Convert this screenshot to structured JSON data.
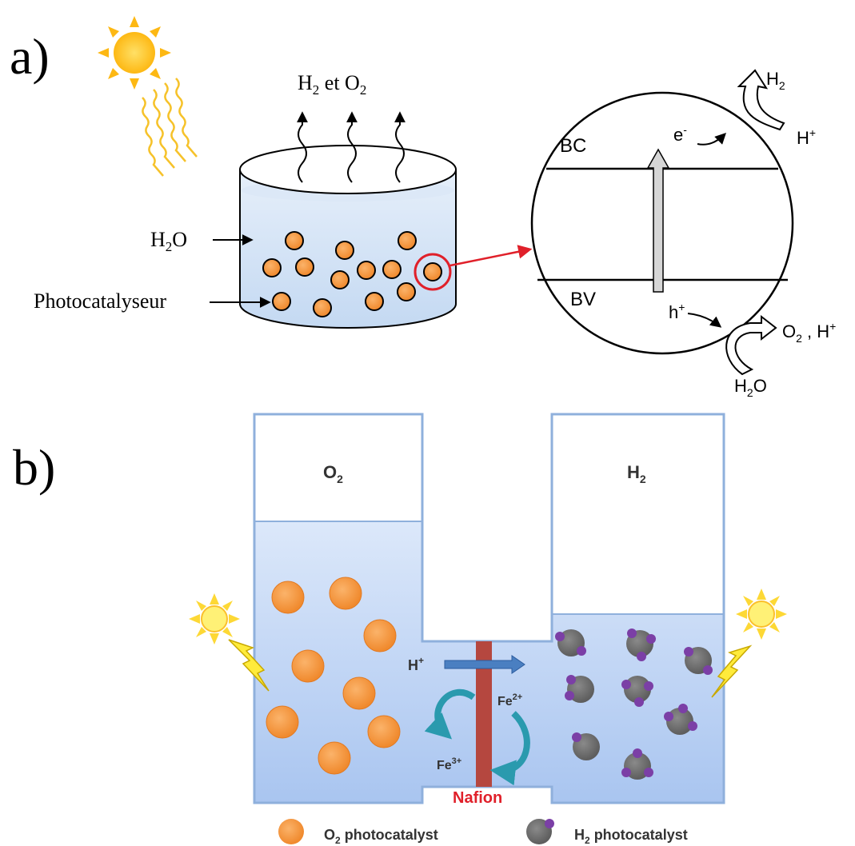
{
  "panel_a": {
    "label": "a)",
    "gas_main": "H",
    "gas_sub1": "2",
    "gas_mid": " et O",
    "gas_sub2": "2",
    "water_main": "H",
    "water_sub": "2",
    "water_end": "O",
    "catalyst_label": "Photocatalyseur",
    "band_top": "BC",
    "band_bottom": "BV",
    "electron": "e",
    "electron_sup": "-",
    "h2_main": "H",
    "h2_sub": "2",
    "hplus_main": "H",
    "hplus_sup": "+",
    "hole": "h",
    "hole_sup": "+",
    "o2_main": "O",
    "o2_sub": "2",
    "o2_tail": " , H",
    "o2_sup": "+",
    "h2o_main": "H",
    "h2o_sub": "2",
    "h2o_end": "O"
  },
  "panel_b": {
    "label": "b)",
    "left_main": "O",
    "left_sub": "2",
    "right_main": "H",
    "right_sub": "2",
    "proton_main": "H",
    "proton_sup": "+",
    "fe2_main": "Fe",
    "fe2_sup": "2+",
    "fe3_main": "Fe",
    "fe3_sup": "3+",
    "membrane": "Nafion",
    "legend_o2_main": "O",
    "legend_o2_sub": "2",
    "legend_o2_rest": " photocatalyst",
    "legend_h2_main": "H",
    "legend_h2_sub": "2",
    "legend_h2_rest": " photocatalyst"
  },
  "colors": {
    "orange": "#F7923A",
    "grey": "#6E6E6E",
    "purple": "#7B3FA6",
    "water_blue": "#B3CCF0",
    "membrane": "#B5473F",
    "cycle_teal": "#2A9AAE",
    "sun": "#FDB813"
  }
}
